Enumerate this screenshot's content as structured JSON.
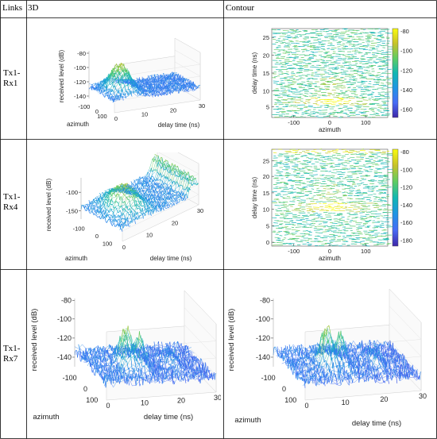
{
  "header": {
    "links": "Links",
    "col3d": "3D",
    "colcontour": "Contour"
  },
  "rows": [
    {
      "link": [
        "Tx1-",
        "Rx1"
      ],
      "plot3d": {
        "zlabel": "received level (dB)",
        "xlabel": "azimuth",
        "ylabel": "delay time (ns)",
        "zticks": [
          "-80",
          "-100",
          "-120",
          "-140"
        ],
        "xticks": [
          "-100",
          "0",
          "100"
        ],
        "yticks": [
          "0",
          "10",
          "20",
          "30"
        ]
      },
      "contour": {
        "ylabel": "delay time (ns)",
        "xlabel": "azimuth",
        "yticks": [
          "25",
          "20",
          "15",
          "10",
          "5"
        ],
        "xticks": [
          "-100",
          "0",
          "100"
        ],
        "cbticks": [
          "-80",
          "-100",
          "-120",
          "-140",
          "-160"
        ]
      }
    },
    {
      "link": [
        "Tx1-",
        "Rx4"
      ],
      "plot3d": {
        "zlabel": "received level (dB)",
        "xlabel": "azimuth",
        "ylabel": "delay time (ns)",
        "zticks": [
          "-100",
          "-150"
        ],
        "xticks": [
          "-100",
          "0",
          "100"
        ],
        "yticks": [
          "0",
          "10",
          "20",
          "30"
        ]
      },
      "contour": {
        "ylabel": "delay time (ns)",
        "xlabel": "azimuth",
        "yticks": [
          "25",
          "20",
          "15",
          "10",
          "5",
          "0"
        ],
        "xticks": [
          "-100",
          "0",
          "100"
        ],
        "cbticks": [
          "-80",
          "-100",
          "-120",
          "-140",
          "-160",
          "-180"
        ]
      }
    },
    {
      "link": [
        "Tx1-",
        "Rx7"
      ],
      "plot3d": {
        "zlabel": "received level (dB)",
        "xlabel": "azimuth",
        "ylabel": "delay time (ns)",
        "zticks": [
          "-80",
          "-100",
          "-120",
          "-140"
        ],
        "xticks": [
          "-100",
          "0",
          "100"
        ],
        "yticks": [
          "0",
          "10",
          "20",
          "30"
        ]
      },
      "contour": {
        "zlabel": "received level (dB)",
        "xlabel": "azimuth",
        "ylabel": "delay time (ns)",
        "zticks": [
          "-80",
          "-100",
          "-120",
          "-140"
        ],
        "xticks": [
          "-100",
          "0",
          "100"
        ],
        "yticks": [
          "0",
          "10",
          "20",
          "30"
        ]
      }
    }
  ],
  "colors": {
    "parula_low": "#3e26a8",
    "parula_mid": "#1fb4b3",
    "parula_high": "#f9fb0e"
  }
}
